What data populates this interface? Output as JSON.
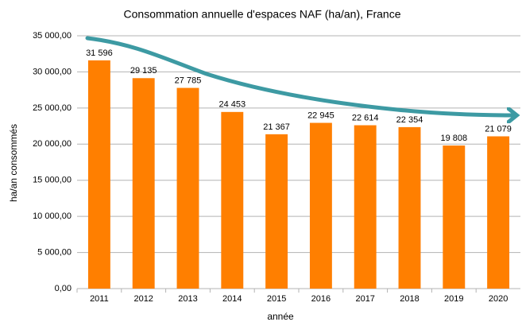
{
  "chart_data": {
    "type": "bar",
    "title": "Consommation annuelle d'espaces NAF (ha/an), France",
    "x_label": "année",
    "y_label": "ha/an consommés",
    "categories": [
      "2011",
      "2012",
      "2013",
      "2014",
      "2015",
      "2016",
      "2017",
      "2018",
      "2019",
      "2020"
    ],
    "values": [
      31596,
      29135,
      27785,
      24453,
      21367,
      22945,
      22614,
      22354,
      19808,
      21079
    ],
    "value_labels": [
      "31 596",
      "29 135",
      "27 785",
      "24 453",
      "21 367",
      "22 945",
      "22 614",
      "22 354",
      "19 808",
      "21 079"
    ],
    "color": "#ff7f00",
    "ylim": [
      0,
      35000
    ],
    "yticks": [
      {
        "value": 0,
        "label": "0,00"
      },
      {
        "value": 5000,
        "label": "5 000,00"
      },
      {
        "value": 10000,
        "label": "10 000,00"
      },
      {
        "value": 15000,
        "label": "15 000,00"
      },
      {
        "value": 20000,
        "label": "20 000,00"
      },
      {
        "value": 25000,
        "label": "25 000,00"
      },
      {
        "value": 30000,
        "label": "30 000,00"
      },
      {
        "value": 35000,
        "label": "35 000,00"
      }
    ],
    "grid": true
  }
}
